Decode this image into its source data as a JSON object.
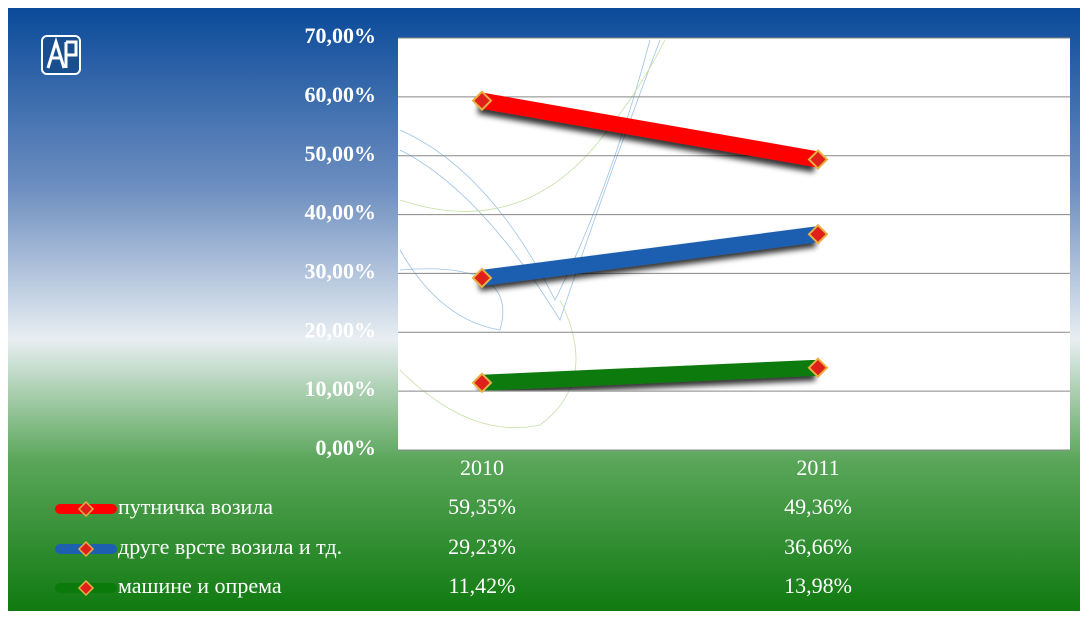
{
  "chart_data": {
    "type": "line",
    "categories": [
      "2010",
      "2011"
    ],
    "series": [
      {
        "name": "путничка возила",
        "color": "#ff0000",
        "values": [
          59.35,
          49.36
        ],
        "value_labels": [
          "59,35%",
          "49,36%"
        ]
      },
      {
        "name": "друге врсте возила и тд.",
        "color": "#1f5fb0",
        "values": [
          29.23,
          36.66
        ],
        "value_labels": [
          "29,23%",
          "36,66%"
        ]
      },
      {
        "name": "машине и опрема",
        "color": "#0a7a0a",
        "values": [
          11.42,
          13.98
        ],
        "value_labels": [
          "11,42%",
          "13,98%"
        ]
      }
    ],
    "ylim": [
      0,
      70
    ],
    "yticks": [
      {
        "value": 0,
        "label": "0,00%"
      },
      {
        "value": 10,
        "label": "10,00%"
      },
      {
        "value": 20,
        "label": "20,00%"
      },
      {
        "value": 30,
        "label": "30,00%"
      },
      {
        "value": 40,
        "label": "40,00%"
      },
      {
        "value": 50,
        "label": "50,00%"
      },
      {
        "value": 60,
        "label": "60,00%"
      },
      {
        "value": 70,
        "label": "70,00%"
      }
    ],
    "grid": true,
    "legend": "bottom"
  }
}
